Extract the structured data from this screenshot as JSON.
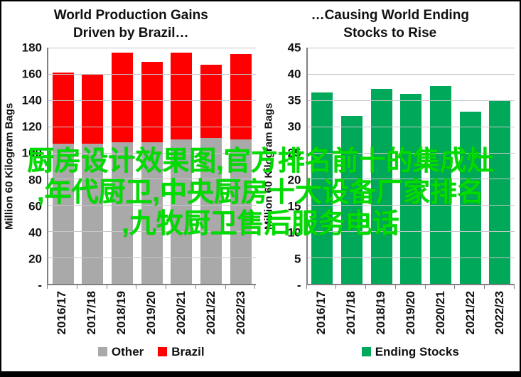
{
  "overlay": {
    "color": "#00DC00",
    "lines": [
      "厨房设计效果图,官方排名前十的集成灶",
      ",年代厨卫,中央厨房十大设备厂家排名",
      ",九牧厨卫售后服务电话"
    ]
  },
  "chart_data": [
    {
      "type": "bar",
      "stacked": true,
      "title": "World Production Gains Driven by Brazil…",
      "categories": [
        "2016/17",
        "2017/18",
        "2018/19",
        "2019/20",
        "2020/21",
        "2021/22",
        "2022/23"
      ],
      "series": [
        {
          "name": "Other",
          "color": "#A9A9A9",
          "values": [
            107,
            107,
            108,
            108,
            110,
            111,
            110
          ]
        },
        {
          "name": "Brazil",
          "color": "#FF0000",
          "values": [
            54,
            53,
            68,
            61,
            66,
            56,
            65
          ]
        }
      ],
      "totals": [
        161,
        160,
        176,
        169,
        176,
        167,
        175
      ],
      "xlabel": "",
      "ylabel": "Million 60 Kilogram Bags",
      "ylim": [
        0,
        180
      ],
      "ytick_step": 20,
      "ytick_labels": [
        "180",
        "160",
        "140",
        "120",
        "100",
        "80",
        "60",
        "40",
        "20",
        "-"
      ],
      "grid": true,
      "legend_position": "bottom"
    },
    {
      "type": "bar",
      "stacked": false,
      "title": "…Causing World Ending Stocks to Rise",
      "categories": [
        "2016/17",
        "2017/18",
        "2018/19",
        "2019/20",
        "2020/21",
        "2021/22",
        "2022/23"
      ],
      "series": [
        {
          "name": "Ending Stocks",
          "color": "#00A859",
          "values": [
            36.5,
            32,
            37.2,
            36.2,
            37.7,
            32.8,
            34.8
          ]
        }
      ],
      "xlabel": "",
      "ylabel": "Million 60 Kilogram Bags",
      "ylim": [
        0,
        45
      ],
      "ytick_step": 5,
      "ytick_labels": [
        "45",
        "40",
        "35",
        "30",
        "25",
        "20",
        "15",
        "10",
        "5",
        "-"
      ],
      "grid": true,
      "legend_position": "bottom"
    }
  ]
}
